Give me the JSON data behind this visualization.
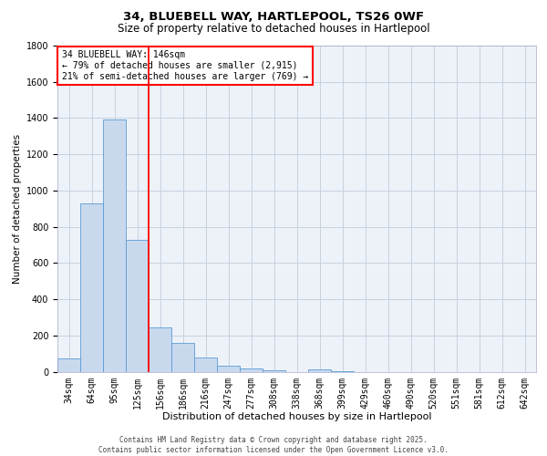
{
  "title_line1": "34, BLUEBELL WAY, HARTLEPOOL, TS26 0WF",
  "title_line2": "Size of property relative to detached houses in Hartlepool",
  "xlabel": "Distribution of detached houses by size in Hartlepool",
  "ylabel": "Number of detached properties",
  "categories": [
    "34sqm",
    "64sqm",
    "95sqm",
    "125sqm",
    "156sqm",
    "186sqm",
    "216sqm",
    "247sqm",
    "277sqm",
    "308sqm",
    "338sqm",
    "368sqm",
    "399sqm",
    "429sqm",
    "460sqm",
    "490sqm",
    "520sqm",
    "551sqm",
    "581sqm",
    "612sqm",
    "642sqm"
  ],
  "values": [
    75,
    930,
    1390,
    730,
    245,
    160,
    80,
    35,
    20,
    10,
    0,
    12,
    5,
    0,
    0,
    0,
    0,
    0,
    0,
    0,
    0
  ],
  "bar_color": "#c8d9ee",
  "bar_edgecolor": "#5b9bd5",
  "redline_index": 3.5,
  "annotation_text": "34 BLUEBELL WAY: 146sqm\n← 79% of detached houses are smaller (2,915)\n21% of semi-detached houses are larger (769) →",
  "redline_color": "red",
  "ylim": [
    0,
    1800
  ],
  "yticks": [
    0,
    200,
    400,
    600,
    800,
    1000,
    1200,
    1400,
    1600,
    1800
  ],
  "grid_color": "#c8d0de",
  "footer_line1": "Contains HM Land Registry data © Crown copyright and database right 2025.",
  "footer_line2": "Contains public sector information licensed under the Open Government Licence v3.0.",
  "background_color": "#edf2f9",
  "fig_width": 6.0,
  "fig_height": 5.0,
  "title1_fontsize": 9.5,
  "title2_fontsize": 8.5,
  "xlabel_fontsize": 8,
  "ylabel_fontsize": 7.5,
  "tick_fontsize": 7,
  "footer_fontsize": 5.5,
  "annot_fontsize": 7
}
